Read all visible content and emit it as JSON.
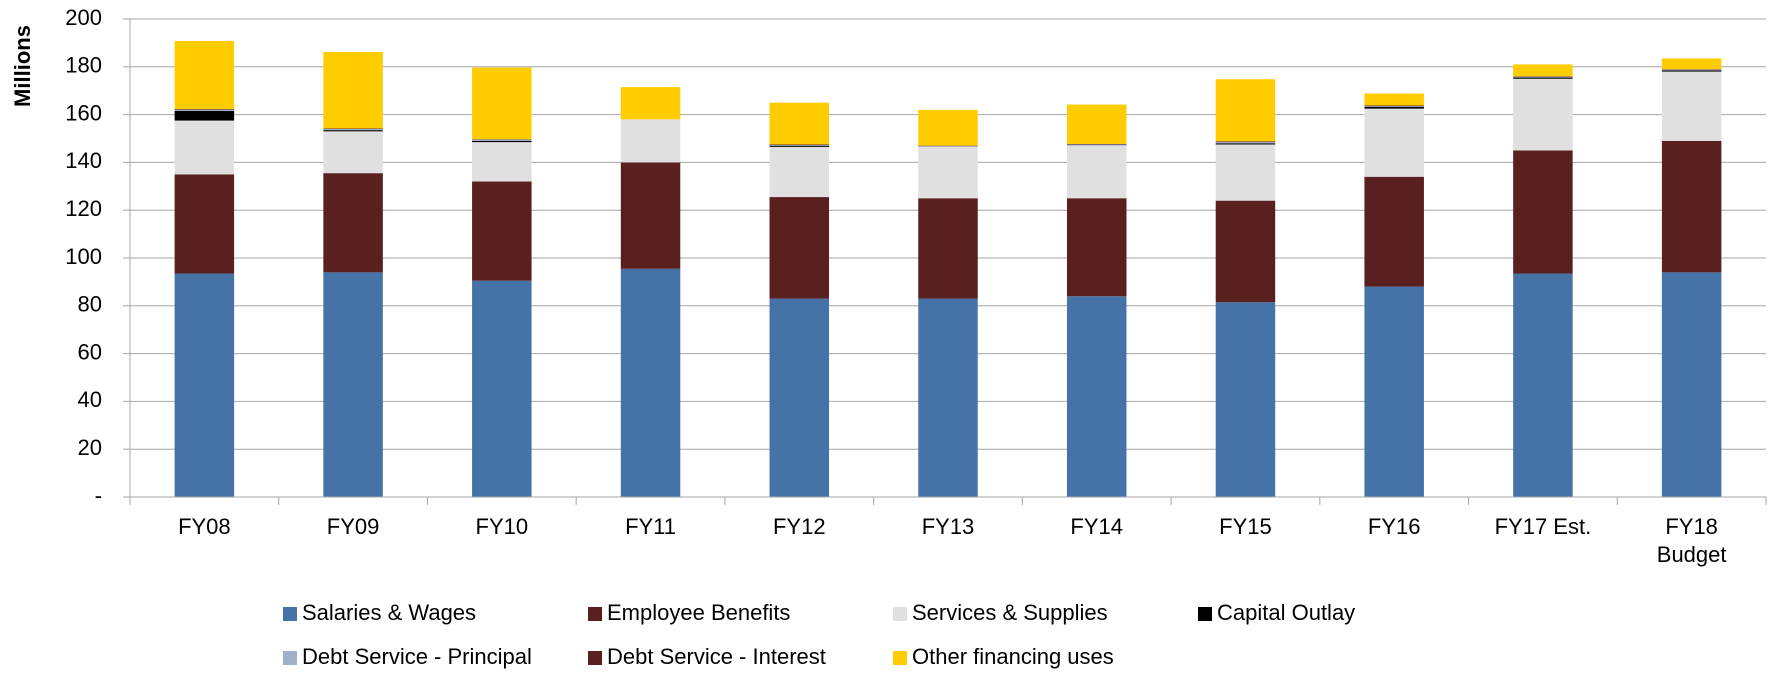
{
  "chart_data": {
    "type": "stacked_bar",
    "y_label": "Millions",
    "categories": [
      "FY08",
      "FY09",
      "FY10",
      "FY11",
      "FY12",
      "FY13",
      "FY14",
      "FY15",
      "FY16",
      "FY17 Est.",
      "FY18\nBudget"
    ],
    "series": [
      {
        "name": "Salaries & Wages",
        "color": "#4572a7",
        "values": [
          93.5,
          94,
          90.5,
          95.5,
          83,
          83,
          84,
          81.5,
          88,
          93.5,
          94
        ]
      },
      {
        "name": "Employee Benefits",
        "color": "#5a1f1f",
        "values": [
          41.5,
          41.5,
          41.5,
          44.5,
          42.5,
          42,
          41,
          42.5,
          46,
          51.5,
          55
        ]
      },
      {
        "name": "Services & Supplies",
        "color": "#e0e0e0",
        "values": [
          22.5,
          17.5,
          16.5,
          18,
          21,
          21.5,
          22,
          23.5,
          28.5,
          30,
          29
        ]
      },
      {
        "name": "Capital Outlay",
        "color": "#000000",
        "values": [
          4,
          0.5,
          0.5,
          0,
          0.5,
          0,
          0,
          0.5,
          0.8,
          0.5,
          0.5
        ]
      },
      {
        "name": "Debt Service - Principal",
        "color": "#9fb0c9",
        "values": [
          0.5,
          0.5,
          0.5,
          0,
          0.3,
          0.3,
          0.5,
          0.5,
          0.3,
          0.3,
          0.3
        ]
      },
      {
        "name": "Debt Service - Interest",
        "color": "#5a1f1f",
        "values": [
          0.3,
          0.2,
          0.2,
          0,
          0.2,
          0.2,
          0.2,
          0.3,
          0.2,
          0.2,
          0.2
        ]
      },
      {
        "name": "Other financing uses",
        "color": "#ffcc00",
        "values": [
          28.5,
          32,
          30,
          13.5,
          17.5,
          15,
          16.5,
          26,
          5,
          5,
          4.5
        ]
      }
    ],
    "ylim": [
      0,
      200
    ],
    "yticks": [
      {
        "value": 0,
        "label": "-"
      },
      20,
      40,
      60,
      80,
      100,
      120,
      140,
      160,
      180,
      200
    ],
    "grid": true,
    "legend": "bottom"
  }
}
